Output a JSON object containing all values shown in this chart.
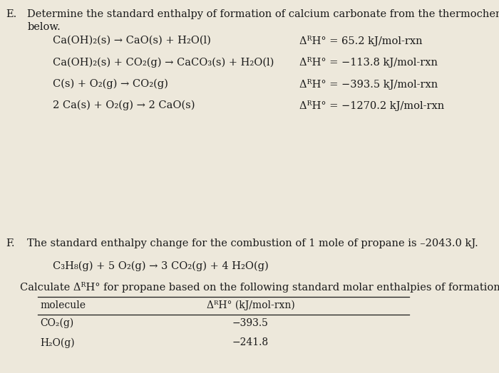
{
  "bg_color": "#ede8db",
  "text_color": "#1a1a1a",
  "reactions": [
    "Ca(OH)₂(s) → CaO(s) + H₂O(l)",
    "Ca(OH)₂(s) + CO₂(g) → CaCO₃(s) + H₂O(l)",
    "C(s) + O₂(g) → CO₂(g)",
    "2 Ca(s) + O₂(g) → 2 CaO(s)"
  ],
  "enthalpies": [
    "ΔᴿH° = 65.2 kJ/mol-rxn",
    "ΔᴿH° = −113.8 kJ/mol-rxn",
    "ΔᴿH° = −393.5 kJ/mol-rxn",
    "ΔᴿH° = −1270.2 kJ/mol-rxn"
  ],
  "title_F_text": "The standard enthalpy change for the combustion of 1 mole of propane is –2043.0 kJ.",
  "reaction_F": "C₃H₈(g) + 5 O₂(g) → 3 CO₂(g) + 4 H₂O(g)",
  "calc_text": "Calculate ΔᴿH° for propane based on the following standard molar enthalpies of formation.",
  "table_header_mol": "molecule",
  "table_header_dH": "ΔᴿH° (kJ/mol-rxn)",
  "table_molecules": [
    "CO₂(g)",
    "H₂O(g)"
  ],
  "table_values": [
    "−393.5",
    "−241.8"
  ],
  "font_size_body": 10.5,
  "font_size_small": 10
}
